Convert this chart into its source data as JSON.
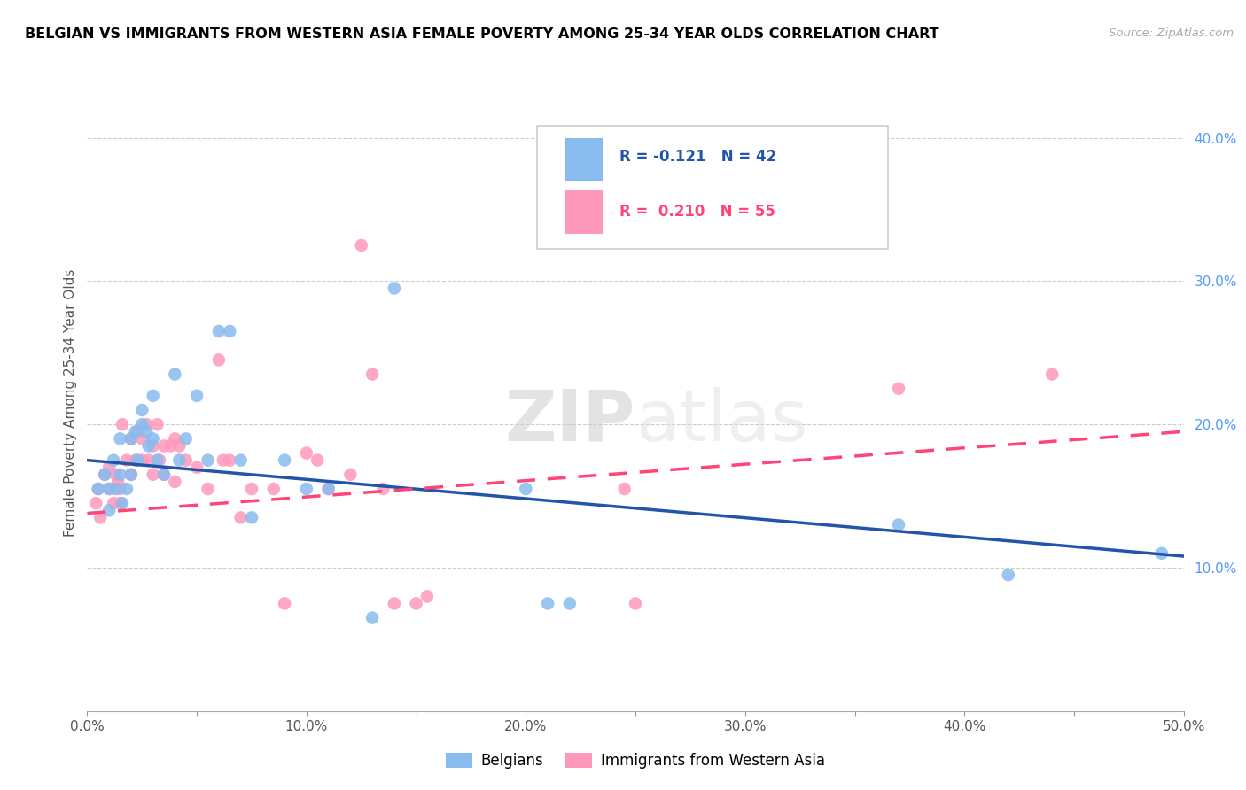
{
  "title": "BELGIAN VS IMMIGRANTS FROM WESTERN ASIA FEMALE POVERTY AMONG 25-34 YEAR OLDS CORRELATION CHART",
  "source": "Source: ZipAtlas.com",
  "ylabel": "Female Poverty Among 25-34 Year Olds",
  "legend_label1": "Belgians",
  "legend_label2": "Immigrants from Western Asia",
  "r1": -0.121,
  "n1": 42,
  "r2": 0.21,
  "n2": 55,
  "xlim": [
    0.0,
    0.5
  ],
  "ylim": [
    0.0,
    0.43
  ],
  "xticks": [
    0.0,
    0.05,
    0.1,
    0.15,
    0.2,
    0.25,
    0.3,
    0.35,
    0.4,
    0.45,
    0.5
  ],
  "xtick_labels": [
    "0.0%",
    "",
    "10.0%",
    "",
    "20.0%",
    "",
    "30.0%",
    "",
    "40.0%",
    "",
    "50.0%"
  ],
  "yticks_right": [
    0.1,
    0.2,
    0.3,
    0.4
  ],
  "color1": "#88BBEE",
  "color2": "#FF99BB",
  "trendline1_color": "#2255AA",
  "trendline2_color": "#FF4477",
  "watermark_part1": "ZIP",
  "watermark_part2": "atlas",
  "belgians_x": [
    0.005,
    0.008,
    0.01,
    0.01,
    0.012,
    0.013,
    0.015,
    0.015,
    0.016,
    0.018,
    0.02,
    0.02,
    0.022,
    0.023,
    0.025,
    0.025,
    0.027,
    0.028,
    0.03,
    0.03,
    0.032,
    0.035,
    0.04,
    0.042,
    0.045,
    0.05,
    0.055,
    0.06,
    0.065,
    0.07,
    0.075,
    0.09,
    0.1,
    0.11,
    0.13,
    0.14,
    0.2,
    0.21,
    0.22,
    0.37,
    0.42,
    0.49
  ],
  "belgians_y": [
    0.155,
    0.165,
    0.155,
    0.14,
    0.175,
    0.155,
    0.19,
    0.165,
    0.145,
    0.155,
    0.19,
    0.165,
    0.195,
    0.175,
    0.21,
    0.2,
    0.195,
    0.185,
    0.22,
    0.19,
    0.175,
    0.165,
    0.235,
    0.175,
    0.19,
    0.22,
    0.175,
    0.265,
    0.265,
    0.175,
    0.135,
    0.175,
    0.155,
    0.155,
    0.065,
    0.295,
    0.155,
    0.075,
    0.075,
    0.13,
    0.095,
    0.11
  ],
  "immigrants_x": [
    0.004,
    0.005,
    0.006,
    0.008,
    0.01,
    0.01,
    0.012,
    0.013,
    0.014,
    0.015,
    0.015,
    0.016,
    0.018,
    0.02,
    0.02,
    0.022,
    0.023,
    0.025,
    0.025,
    0.027,
    0.028,
    0.03,
    0.03,
    0.032,
    0.033,
    0.035,
    0.035,
    0.038,
    0.04,
    0.04,
    0.042,
    0.045,
    0.05,
    0.055,
    0.06,
    0.062,
    0.065,
    0.07,
    0.075,
    0.085,
    0.09,
    0.1,
    0.105,
    0.11,
    0.12,
    0.125,
    0.13,
    0.135,
    0.14,
    0.15,
    0.155,
    0.245,
    0.25,
    0.37,
    0.44
  ],
  "immigrants_y": [
    0.145,
    0.155,
    0.135,
    0.165,
    0.17,
    0.155,
    0.145,
    0.165,
    0.16,
    0.155,
    0.145,
    0.2,
    0.175,
    0.19,
    0.165,
    0.175,
    0.195,
    0.19,
    0.175,
    0.2,
    0.175,
    0.185,
    0.165,
    0.2,
    0.175,
    0.185,
    0.165,
    0.185,
    0.19,
    0.16,
    0.185,
    0.175,
    0.17,
    0.155,
    0.245,
    0.175,
    0.175,
    0.135,
    0.155,
    0.155,
    0.075,
    0.18,
    0.175,
    0.155,
    0.165,
    0.325,
    0.235,
    0.155,
    0.075,
    0.075,
    0.08,
    0.155,
    0.075,
    0.225,
    0.235
  ],
  "trendline1_x": [
    0.0,
    0.5
  ],
  "trendline1_y": [
    0.175,
    0.108
  ],
  "trendline2_x": [
    0.0,
    0.5
  ],
  "trendline2_y": [
    0.138,
    0.195
  ]
}
